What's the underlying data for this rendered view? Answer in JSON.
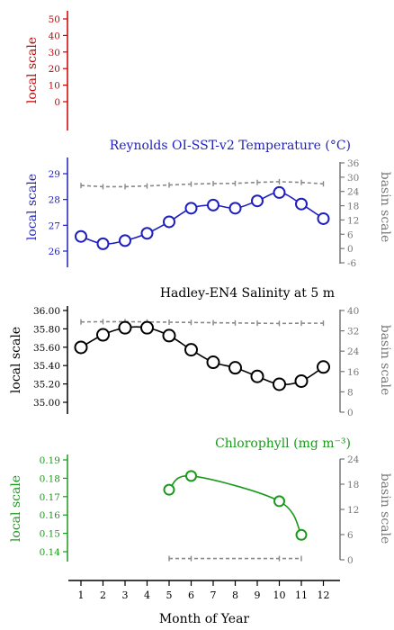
{
  "xaxis": {
    "label": "Month of Year",
    "ticks": [
      "1",
      "2",
      "3",
      "4",
      "5",
      "6",
      "7",
      "8",
      "9",
      "10",
      "11",
      "12"
    ]
  },
  "chart_data": [
    {
      "type": "line",
      "title": "",
      "color": "#cc0000",
      "ylabel_left": "local scale",
      "ylabel_right": "",
      "yticks_left": [
        "50",
        "40",
        "30",
        "20",
        "10",
        "0"
      ],
      "yticks_right": [],
      "ylim": [
        0,
        50
      ],
      "x": [],
      "series": []
    },
    {
      "type": "line",
      "title": "Reynolds OI-SST-v2 Temperature (°C)",
      "color": "#1f1fbf",
      "ylabel_left": "local scale",
      "ylabel_right": "basin scale",
      "yticks_left": [
        "29",
        "28",
        "27",
        "26"
      ],
      "yticks_right": [
        "36",
        "30",
        "24",
        "18",
        "12",
        "6",
        "0",
        "-6"
      ],
      "ylim": [
        25.6,
        29.3
      ],
      "ylim_right": [
        -6,
        36
      ],
      "x": [
        1,
        2,
        3,
        4,
        5,
        6,
        7,
        8,
        9,
        10,
        11,
        12
      ],
      "local": [
        26.3,
        25.95,
        26.1,
        26.45,
        27.0,
        27.65,
        27.8,
        27.65,
        28.0,
        28.4,
        27.85,
        27.15
      ],
      "basin": [
        26.5,
        26.0,
        26.0,
        26.3,
        26.7,
        27.1,
        27.3,
        27.4,
        27.8,
        28.1,
        27.8,
        27.2
      ]
    },
    {
      "type": "line",
      "title": "Hadley-EN4 Salinity at 5 m",
      "color": "#000000",
      "ylabel_left": "local scale",
      "ylabel_right": "basin scale",
      "yticks_left": [
        "36.00",
        "35.80",
        "35.60",
        "35.40",
        "35.20",
        "35.00"
      ],
      "yticks_right": [
        "40",
        "32",
        "24",
        "16",
        "8",
        "0"
      ],
      "ylim": [
        34.88,
        36.05
      ],
      "ylim_right": [
        0,
        40
      ],
      "x": [
        1,
        2,
        3,
        4,
        5,
        6,
        7,
        8,
        9,
        10,
        11,
        12
      ],
      "local": [
        35.58,
        35.74,
        35.83,
        35.83,
        35.73,
        35.55,
        35.39,
        35.32,
        35.21,
        35.11,
        35.15,
        35.33
      ],
      "basin": [
        35.5,
        35.6,
        35.6,
        35.5,
        35.4,
        35.3,
        35.2,
        35.1,
        35.0,
        34.9,
        35.0,
        35.0
      ]
    },
    {
      "type": "line",
      "title": "Chlorophyll (mg m⁻³)",
      "color": "#1a9a1a",
      "ylabel_left": "local scale",
      "ylabel_right": "basin scale",
      "yticks_left": [
        "0.19",
        "0.18",
        "0.17",
        "0.16",
        "0.15",
        "0.14"
      ],
      "yticks_right": [
        "24",
        "18",
        "12",
        "6",
        "0"
      ],
      "ylim": [
        0.1325,
        0.1925
      ],
      "ylim_right": [
        0,
        24
      ],
      "x": [
        5,
        6,
        10,
        11
      ],
      "local": [
        0.173,
        0.182,
        0.1655,
        0.1435
      ],
      "basin": [
        0.3,
        0.3,
        0.3,
        0.3
      ]
    }
  ]
}
